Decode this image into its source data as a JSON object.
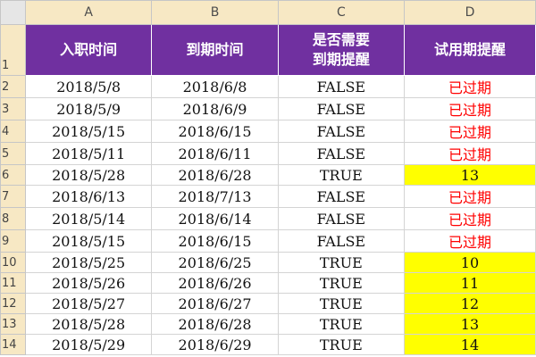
{
  "columns": [
    "A",
    "B",
    "C",
    "D"
  ],
  "headers": [
    "入职时间",
    "到期时间",
    "是否需要\n到期提醒",
    "试用期提醒"
  ],
  "rows": [
    {
      "num": "2",
      "a": "2018/5/8",
      "b": "2018/6/8",
      "c": "FALSE",
      "d": "已过期",
      "status": "expired"
    },
    {
      "num": "3",
      "a": "2018/5/9",
      "b": "2018/6/9",
      "c": "FALSE",
      "d": "已过期",
      "status": "expired"
    },
    {
      "num": "4",
      "a": "2018/5/15",
      "b": "2018/6/15",
      "c": "FALSE",
      "d": "已过期",
      "status": "expired"
    },
    {
      "num": "5",
      "a": "2018/5/11",
      "b": "2018/6/11",
      "c": "FALSE",
      "d": "已过期",
      "status": "expired"
    },
    {
      "num": "6",
      "a": "2018/5/28",
      "b": "2018/6/28",
      "c": "TRUE",
      "d": "13",
      "status": "remind"
    },
    {
      "num": "7",
      "a": "2018/6/13",
      "b": "2018/7/13",
      "c": "FALSE",
      "d": "已过期",
      "status": "expired"
    },
    {
      "num": "8",
      "a": "2018/5/14",
      "b": "2018/6/14",
      "c": "FALSE",
      "d": "已过期",
      "status": "expired"
    },
    {
      "num": "9",
      "a": "2018/5/15",
      "b": "2018/6/15",
      "c": "FALSE",
      "d": "已过期",
      "status": "expired"
    },
    {
      "num": "10",
      "a": "2018/5/25",
      "b": "2018/6/25",
      "c": "TRUE",
      "d": "10",
      "status": "remind"
    },
    {
      "num": "11",
      "a": "2018/5/26",
      "b": "2018/6/26",
      "c": "TRUE",
      "d": "11",
      "status": "remind"
    },
    {
      "num": "12",
      "a": "2018/5/27",
      "b": "2018/6/27",
      "c": "TRUE",
      "d": "12",
      "status": "remind"
    },
    {
      "num": "13",
      "a": "2018/5/28",
      "b": "2018/6/28",
      "c": "TRUE",
      "d": "13",
      "status": "remind"
    },
    {
      "num": "14",
      "a": "2018/5/29",
      "b": "2018/6/29",
      "c": "TRUE",
      "d": "14",
      "status": "remind"
    }
  ],
  "colors": {
    "header_fill": "#7030a0",
    "header_text": "#ffffff",
    "expired_text": "#ff0000",
    "remind_fill": "#ffff00",
    "column_heading_fill": "#f7e8c4"
  }
}
